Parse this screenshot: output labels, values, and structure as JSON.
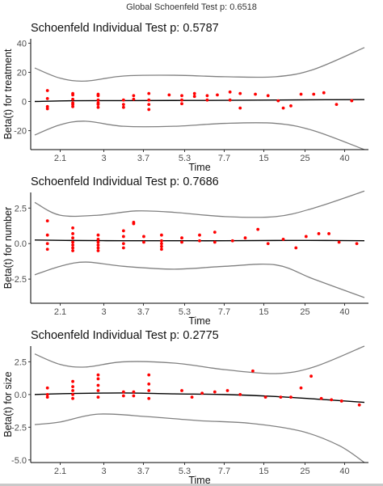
{
  "global_title": "Global Schoenfeld Test p: 0.6518",
  "chart_data": [
    {
      "type": "scatter",
      "title": "Schoenfeld Individual Test p: 0.5787",
      "xlabel": "Time",
      "ylabel": "Beta(t) for treatment",
      "x_ticks": [
        "2.1",
        "3",
        "3.7",
        "5.3",
        "7.7",
        "15",
        "25",
        "40"
      ],
      "y_ticks": [
        -20,
        0,
        20,
        40
      ],
      "ylim": [
        -33,
        43
      ],
      "grid": false,
      "colors": {
        "points": "#ff0000",
        "fit": "#000000",
        "band": "#808080"
      },
      "points": [
        {
          "x": 1,
          "y": 7.5
        },
        {
          "x": 1,
          "y": 2
        },
        {
          "x": 1,
          "y": -3.5
        },
        {
          "x": 1,
          "y": -5
        },
        {
          "x": 2,
          "y": 5.5
        },
        {
          "x": 2,
          "y": 4.5
        },
        {
          "x": 2,
          "y": 1.5
        },
        {
          "x": 2,
          "y": -1
        },
        {
          "x": 2,
          "y": -2
        },
        {
          "x": 2,
          "y": -3.5
        },
        {
          "x": 3,
          "y": 5
        },
        {
          "x": 3,
          "y": 4
        },
        {
          "x": 3,
          "y": 1
        },
        {
          "x": 3,
          "y": -1
        },
        {
          "x": 3,
          "y": -2
        },
        {
          "x": 3,
          "y": -4
        },
        {
          "x": 4,
          "y": 1
        },
        {
          "x": 4,
          "y": -2
        },
        {
          "x": 4,
          "y": -4
        },
        {
          "x": 4.4,
          "y": 4
        },
        {
          "x": 4.4,
          "y": 1.5
        },
        {
          "x": 5,
          "y": 5.5
        },
        {
          "x": 5,
          "y": 1
        },
        {
          "x": 5,
          "y": -2
        },
        {
          "x": 5,
          "y": -5.5
        },
        {
          "x": 5.8,
          "y": 4.5
        },
        {
          "x": 6.3,
          "y": 4
        },
        {
          "x": 6.3,
          "y": 1
        },
        {
          "x": 6.3,
          "y": -1.5
        },
        {
          "x": 6.8,
          "y": 5.5
        },
        {
          "x": 6.8,
          "y": 3.5
        },
        {
          "x": 7.3,
          "y": 4
        },
        {
          "x": 7.3,
          "y": 1
        },
        {
          "x": 7.7,
          "y": 4.5
        },
        {
          "x": 8.2,
          "y": 6.5
        },
        {
          "x": 8.2,
          "y": 1
        },
        {
          "x": 8.6,
          "y": 5.5
        },
        {
          "x": 8.6,
          "y": -4.5
        },
        {
          "x": 9.2,
          "y": 5
        },
        {
          "x": 9.7,
          "y": 4
        },
        {
          "x": 10.1,
          "y": 0.5
        },
        {
          "x": 10.3,
          "y": -4.5
        },
        {
          "x": 10.6,
          "y": -3
        },
        {
          "x": 11,
          "y": 5
        },
        {
          "x": 11.5,
          "y": 5
        },
        {
          "x": 11.9,
          "y": 6
        },
        {
          "x": 12.4,
          "y": -2
        },
        {
          "x": 13,
          "y": 0.5
        }
      ],
      "fit": [
        [
          0.5,
          0
        ],
        [
          2,
          0.5
        ],
        [
          4,
          0.6
        ],
        [
          6,
          0.7
        ],
        [
          8,
          0.8
        ],
        [
          10,
          1
        ],
        [
          12,
          1.2
        ],
        [
          13.5,
          1.3
        ]
      ],
      "upper": [
        [
          0.5,
          23
        ],
        [
          1.5,
          16
        ],
        [
          2.5,
          14
        ],
        [
          4,
          17.5
        ],
        [
          6,
          18
        ],
        [
          8,
          17
        ],
        [
          10,
          17
        ],
        [
          11.5,
          22
        ],
        [
          13.5,
          37
        ]
      ],
      "lower": [
        [
          0.5,
          -23
        ],
        [
          1.5,
          -16
        ],
        [
          2.5,
          -13.5
        ],
        [
          4,
          -17
        ],
        [
          6,
          -17
        ],
        [
          8,
          -15
        ],
        [
          10,
          -15
        ],
        [
          11.5,
          -20
        ],
        [
          13.5,
          -33
        ]
      ]
    },
    {
      "type": "scatter",
      "title": "Schoenfeld Individual Test p: 0.7686",
      "xlabel": "Time",
      "ylabel": "Beta(t) for number",
      "x_ticks": [
        "2.1",
        "3",
        "3.7",
        "5.3",
        "7.7",
        "15",
        "25",
        "40"
      ],
      "y_ticks": [
        -2.5,
        0.0,
        2.5
      ],
      "ylim": [
        -4.2,
        3.6
      ],
      "grid": false,
      "colors": {
        "points": "#ff0000",
        "fit": "#000000",
        "band": "#808080"
      },
      "points": [
        {
          "x": 1,
          "y": 1.6
        },
        {
          "x": 1,
          "y": 0.6
        },
        {
          "x": 1,
          "y": 0
        },
        {
          "x": 1,
          "y": -0.4
        },
        {
          "x": 2,
          "y": 1.1
        },
        {
          "x": 2,
          "y": 0.7
        },
        {
          "x": 2,
          "y": 0.4
        },
        {
          "x": 2,
          "y": 0.1
        },
        {
          "x": 2,
          "y": -0.1
        },
        {
          "x": 2,
          "y": -0.3
        },
        {
          "x": 2,
          "y": -0.5
        },
        {
          "x": 3,
          "y": 0.6
        },
        {
          "x": 3,
          "y": 0.3
        },
        {
          "x": 3,
          "y": 0.1
        },
        {
          "x": 3,
          "y": -0.1
        },
        {
          "x": 3,
          "y": -0.3
        },
        {
          "x": 3,
          "y": -0.5
        },
        {
          "x": 4,
          "y": 0.9
        },
        {
          "x": 4,
          "y": 0.5
        },
        {
          "x": 4,
          "y": 0
        },
        {
          "x": 4,
          "y": -0.3
        },
        {
          "x": 4.4,
          "y": 1.5
        },
        {
          "x": 4.4,
          "y": 1.4
        },
        {
          "x": 4.8,
          "y": 0.5
        },
        {
          "x": 4.8,
          "y": 0.1
        },
        {
          "x": 5.5,
          "y": 0.6
        },
        {
          "x": 5.5,
          "y": 0.2
        },
        {
          "x": 5.5,
          "y": 0
        },
        {
          "x": 5.5,
          "y": -0.2
        },
        {
          "x": 5.5,
          "y": -0.4
        },
        {
          "x": 6.3,
          "y": 0.4
        },
        {
          "x": 6.3,
          "y": 0.1
        },
        {
          "x": 7,
          "y": 0.6
        },
        {
          "x": 7,
          "y": 0.2
        },
        {
          "x": 7.6,
          "y": 0.8
        },
        {
          "x": 7.6,
          "y": 0.1
        },
        {
          "x": 8.3,
          "y": 0.2
        },
        {
          "x": 8.8,
          "y": 0.4
        },
        {
          "x": 9.3,
          "y": 1
        },
        {
          "x": 9.7,
          "y": 0
        },
        {
          "x": 10.3,
          "y": 0.3
        },
        {
          "x": 10.8,
          "y": -0.3
        },
        {
          "x": 11.2,
          "y": 0.5
        },
        {
          "x": 11.7,
          "y": 0.7
        },
        {
          "x": 12.1,
          "y": 0.7
        },
        {
          "x": 12.5,
          "y": 0.1
        },
        {
          "x": 13.2,
          "y": 0
        }
      ],
      "fit": [
        [
          0.5,
          0.25
        ],
        [
          2,
          0.22
        ],
        [
          4,
          0.2
        ],
        [
          6,
          0.2
        ],
        [
          8,
          0.2
        ],
        [
          10,
          0.22
        ],
        [
          12,
          0.22
        ],
        [
          13.5,
          0.2
        ]
      ],
      "upper": [
        [
          0.5,
          2.9
        ],
        [
          1.5,
          2
        ],
        [
          3,
          2
        ],
        [
          4.5,
          2.3
        ],
        [
          6,
          2.2
        ],
        [
          8,
          1.9
        ],
        [
          10,
          1.9
        ],
        [
          11.5,
          2.5
        ],
        [
          13.5,
          3.7
        ]
      ],
      "lower": [
        [
          0.5,
          -2.2
        ],
        [
          1.5,
          -1.6
        ],
        [
          2.5,
          -1.3
        ],
        [
          4,
          -1.6
        ],
        [
          6,
          -1.8
        ],
        [
          8,
          -1.6
        ],
        [
          10,
          -1.5
        ],
        [
          11.5,
          -2.5
        ],
        [
          13.5,
          -3.8
        ]
      ]
    },
    {
      "type": "scatter",
      "title": "Schoenfeld Individual Test p: 0.2775",
      "xlabel": "Time",
      "ylabel": "Beta(t) for size",
      "x_ticks": [
        "2.1",
        "3",
        "3.7",
        "5.3",
        "7.7",
        "15",
        "25",
        "40"
      ],
      "y_ticks": [
        -5.0,
        -2.5,
        0.0,
        2.5
      ],
      "ylim": [
        -5.2,
        3.7
      ],
      "grid": false,
      "colors": {
        "points": "#ff0000",
        "fit": "#000000",
        "band": "#808080"
      },
      "points": [
        {
          "x": 1,
          "y": 0.5
        },
        {
          "x": 1,
          "y": 0
        },
        {
          "x": 1,
          "y": -0.2
        },
        {
          "x": 2,
          "y": 1
        },
        {
          "x": 2,
          "y": 0.6
        },
        {
          "x": 2,
          "y": 0.3
        },
        {
          "x": 2,
          "y": 0
        },
        {
          "x": 2,
          "y": -0.3
        },
        {
          "x": 3,
          "y": 1.5
        },
        {
          "x": 3,
          "y": 1.2
        },
        {
          "x": 3,
          "y": 0.7
        },
        {
          "x": 3,
          "y": 0.3
        },
        {
          "x": 3,
          "y": -0.2
        },
        {
          "x": 4,
          "y": 0.2
        },
        {
          "x": 4,
          "y": -0.1
        },
        {
          "x": 4.4,
          "y": 0.2
        },
        {
          "x": 4.4,
          "y": -0.1
        },
        {
          "x": 5,
          "y": 1.5
        },
        {
          "x": 5,
          "y": 0.8
        },
        {
          "x": 5,
          "y": 0.3
        },
        {
          "x": 5,
          "y": -0.3
        },
        {
          "x": 6.3,
          "y": 0.3
        },
        {
          "x": 6.7,
          "y": -0.2
        },
        {
          "x": 7.1,
          "y": 0.1
        },
        {
          "x": 7.6,
          "y": 0.2
        },
        {
          "x": 8.1,
          "y": 0.3
        },
        {
          "x": 8.6,
          "y": 0
        },
        {
          "x": 9.1,
          "y": 1.8
        },
        {
          "x": 9.6,
          "y": -0.2
        },
        {
          "x": 10.2,
          "y": -0.2
        },
        {
          "x": 10.6,
          "y": -0.2
        },
        {
          "x": 11,
          "y": 0.5
        },
        {
          "x": 11.4,
          "y": 1.4
        },
        {
          "x": 11.8,
          "y": -0.3
        },
        {
          "x": 12.2,
          "y": -0.4
        },
        {
          "x": 12.6,
          "y": -0.5
        },
        {
          "x": 13.3,
          "y": -0.8
        }
      ],
      "fit": [
        [
          0.5,
          0
        ],
        [
          2,
          0.08
        ],
        [
          4,
          0.12
        ],
        [
          6,
          0.05
        ],
        [
          8,
          0
        ],
        [
          10,
          -0.15
        ],
        [
          12,
          -0.4
        ],
        [
          13.5,
          -0.6
        ]
      ],
      "upper": [
        [
          0.5,
          3.1
        ],
        [
          1.5,
          2.3
        ],
        [
          2.5,
          2.1
        ],
        [
          4,
          2.5
        ],
        [
          6,
          2.4
        ],
        [
          8,
          1.9
        ],
        [
          10,
          1.6
        ],
        [
          11.5,
          2.1
        ],
        [
          13.5,
          3.7
        ]
      ],
      "lower": [
        [
          0.5,
          -2.3
        ],
        [
          1.5,
          -2.1
        ],
        [
          3,
          -1.5
        ],
        [
          5,
          -1.7
        ],
        [
          7,
          -2
        ],
        [
          9,
          -2.2
        ],
        [
          11,
          -2.8
        ],
        [
          12.5,
          -3.9
        ],
        [
          13.5,
          -5.2
        ]
      ]
    }
  ]
}
